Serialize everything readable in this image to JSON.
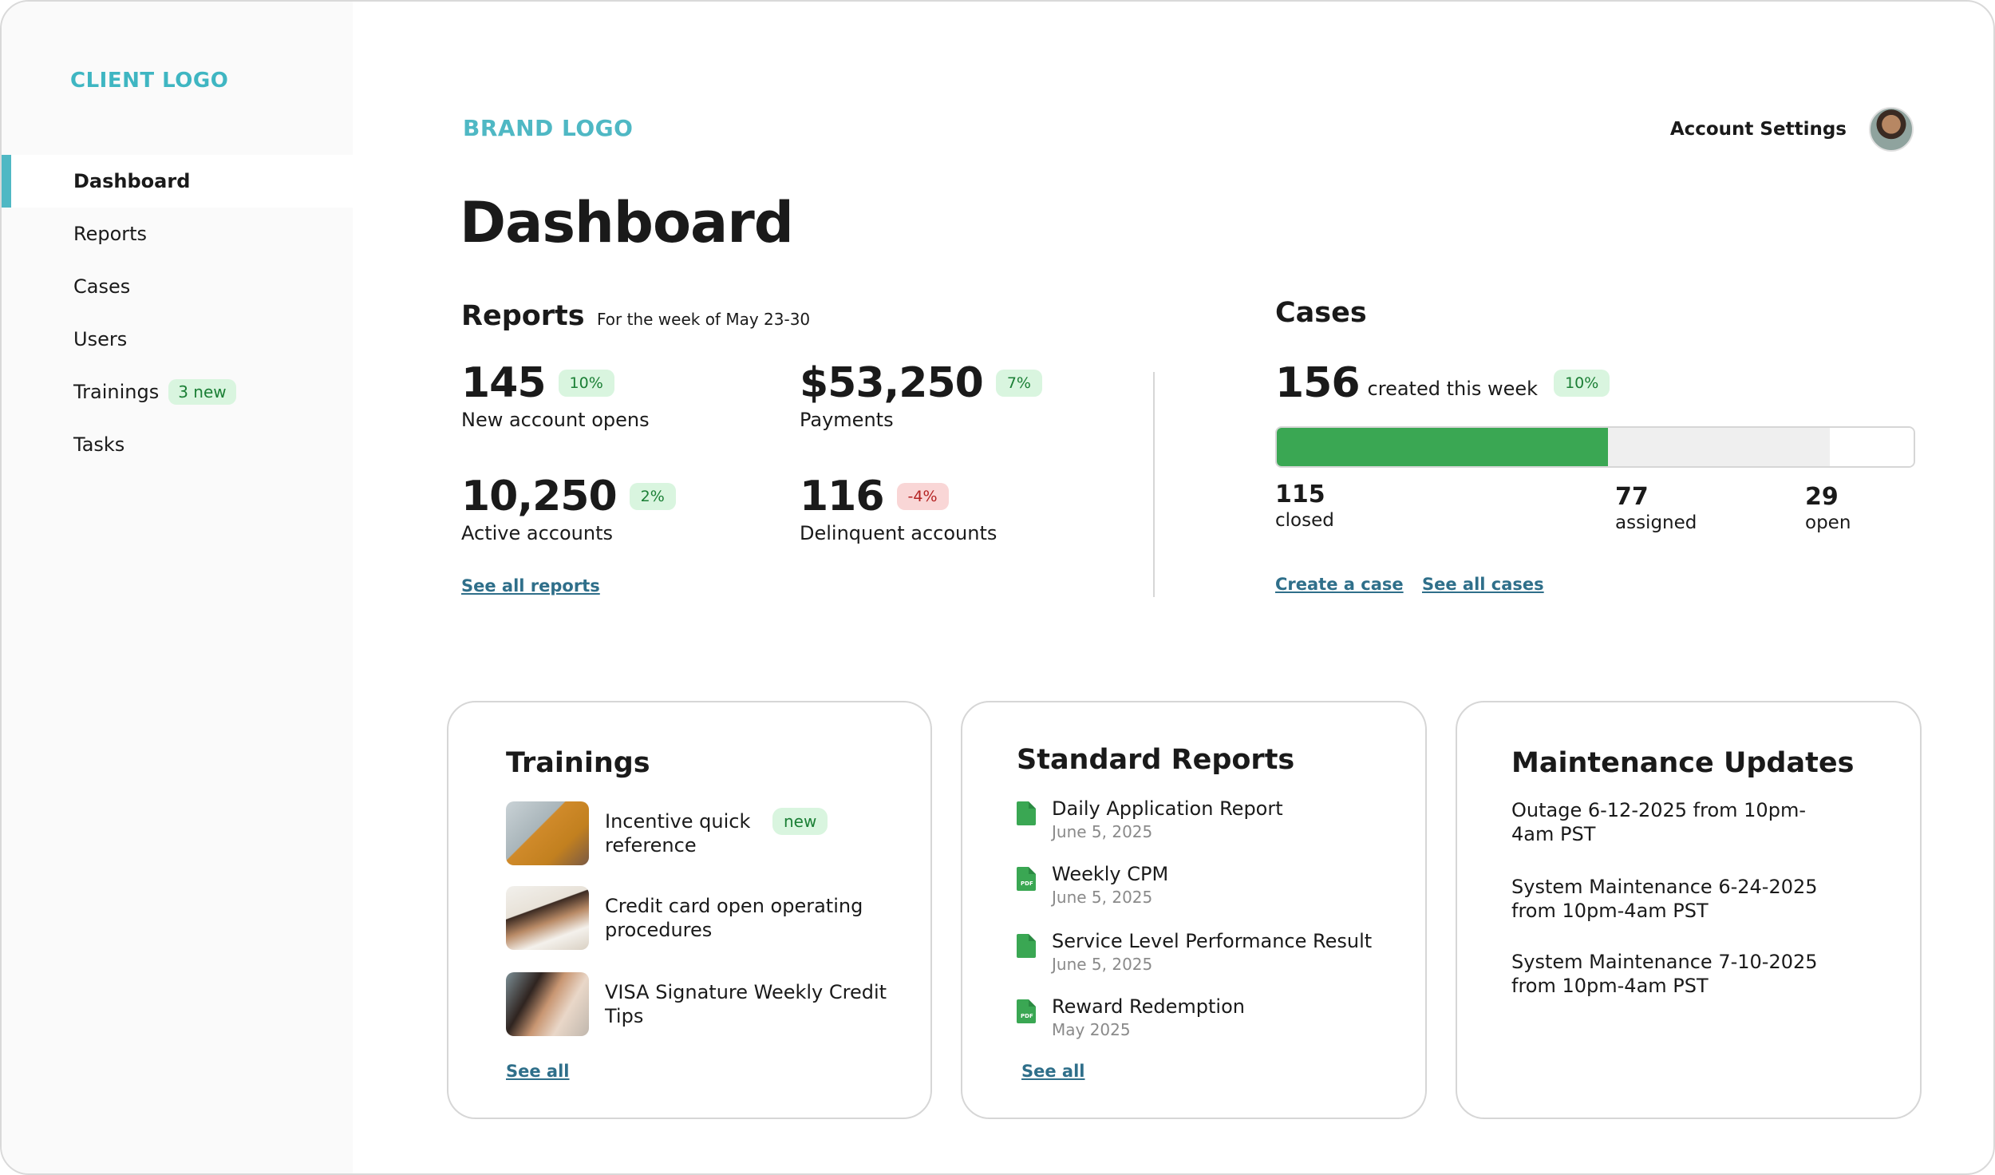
{
  "sidebar": {
    "client_logo": "CLIENT LOGO",
    "items": [
      {
        "label": "Dashboard"
      },
      {
        "label": "Reports"
      },
      {
        "label": "Cases"
      },
      {
        "label": "Users"
      },
      {
        "label": "Trainings",
        "badge": "3 new"
      },
      {
        "label": "Tasks"
      }
    ]
  },
  "header": {
    "brand_logo": "BRAND LOGO",
    "account_settings": "Account Settings",
    "page_title": "Dashboard"
  },
  "reports": {
    "title": "Reports",
    "subtitle": "For the week of May 23-30",
    "stats": [
      {
        "value": "145",
        "change": "10%",
        "label": "New account opens"
      },
      {
        "value": "$53,250",
        "change": "7%",
        "label": "Payments"
      },
      {
        "value": "10,250",
        "change": "2%",
        "label": "Active accounts"
      },
      {
        "value": "116",
        "change": "-4%",
        "label": "Delinquent accounts"
      }
    ],
    "see_all": "See all reports"
  },
  "cases": {
    "title": "Cases",
    "count": "156",
    "count_text": "created this week",
    "change": "10%",
    "closed": {
      "value": "115",
      "label": "closed"
    },
    "assigned": {
      "value": "77",
      "label": "assigned"
    },
    "open": {
      "value": "29",
      "label": "open"
    },
    "create_link": "Create a case",
    "see_all_link": "See all cases"
  },
  "trainings_card": {
    "title": "Trainings",
    "items": [
      {
        "text": "Incentive quick reference",
        "badge": "new"
      },
      {
        "text": "Credit card open operating procedures"
      },
      {
        "text": "VISA Signature Weekly Credit Tips"
      }
    ],
    "see_all": "See all"
  },
  "standard_reports_card": {
    "title": "Standard Reports",
    "items": [
      {
        "name": "Daily Application Report",
        "date": "June 5, 2025"
      },
      {
        "name": "Weekly CPM",
        "date": "June 5, 2025"
      },
      {
        "name": "Service Level Performance Result",
        "date": "June 5, 2025"
      },
      {
        "name": "Reward Redemption",
        "date": "May 2025"
      }
    ],
    "see_all": "See all"
  },
  "maintenance_card": {
    "title": "Maintenance Updates",
    "items": [
      "Outage 6-12-2025 from 10pm-4am PST",
      "System Maintenance 6-24-2025 from 10pm-4am PST",
      "System Maintenance 7-10-2025 from 10pm-4am PST"
    ]
  },
  "colors": {
    "accent": "#4fb8c4",
    "positive": "#3aa753",
    "link": "#2f6f8a"
  }
}
